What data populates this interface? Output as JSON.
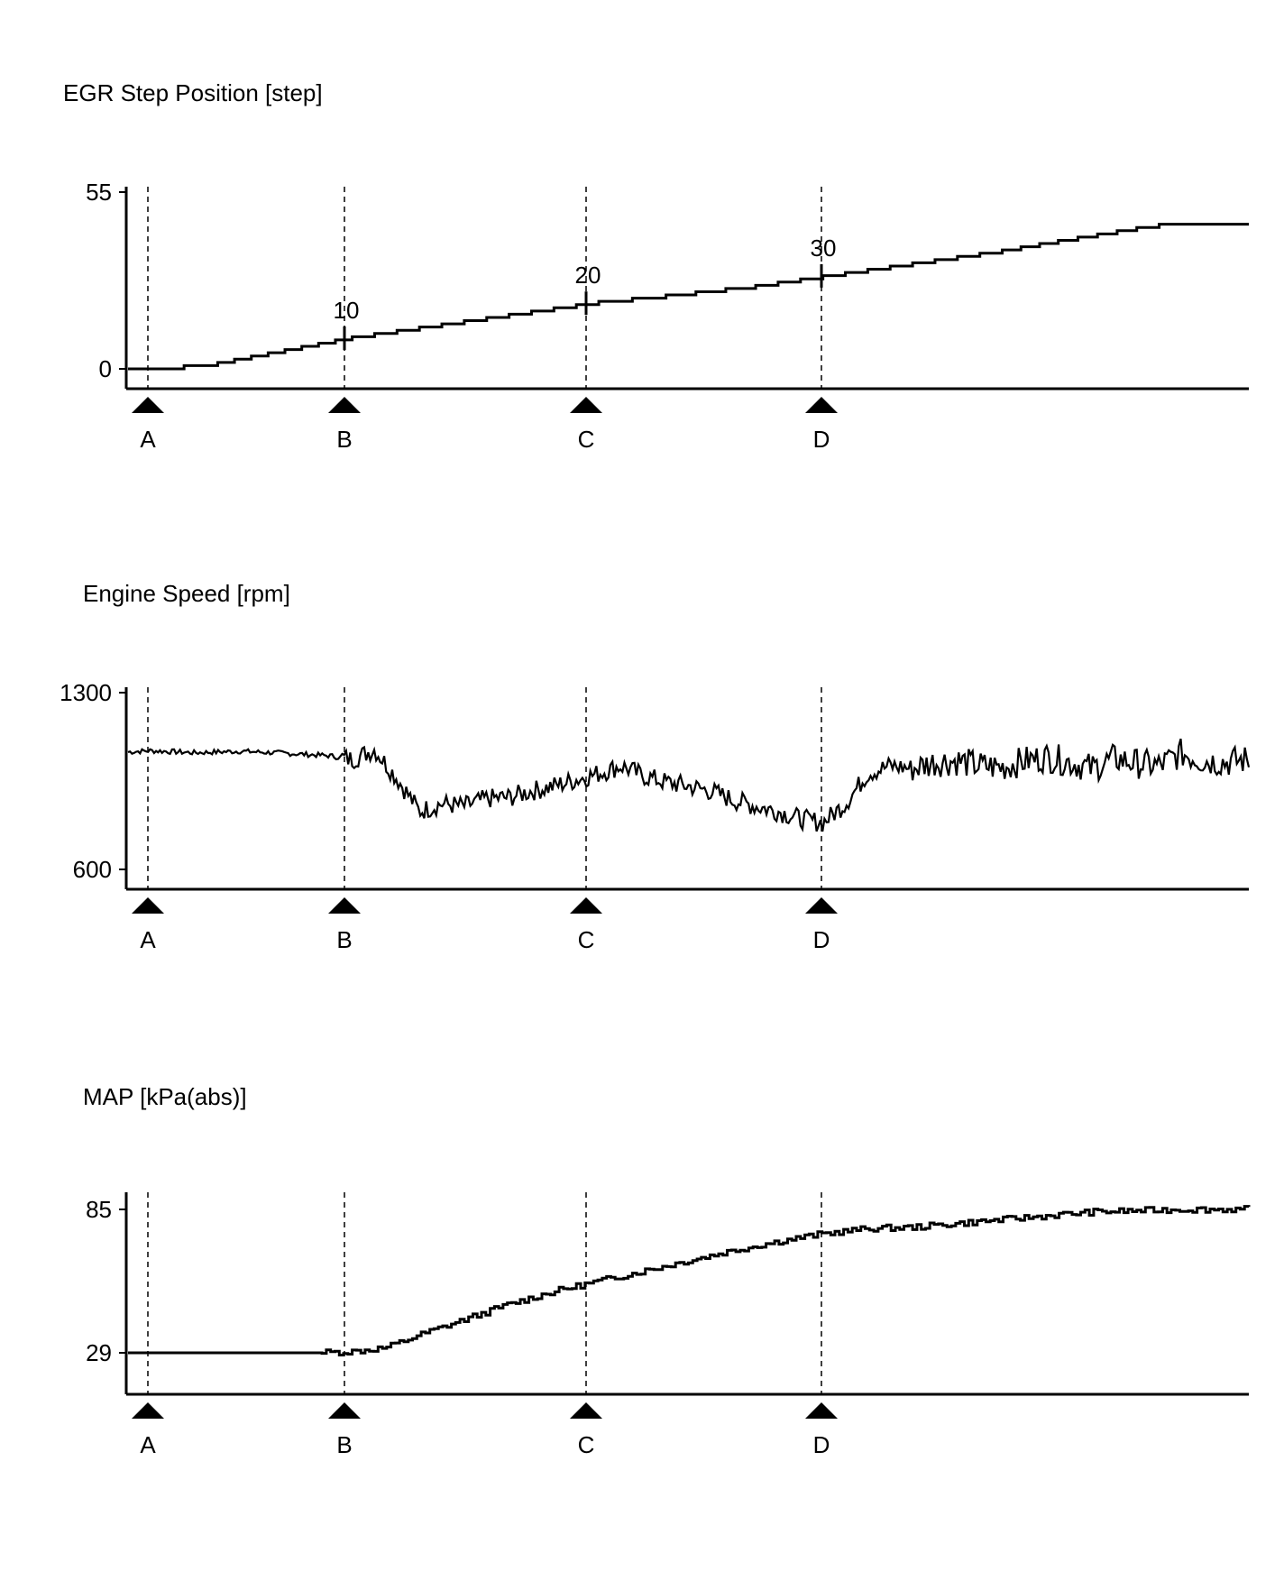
{
  "chart_data": [
    {
      "type": "line",
      "title": "EGR Step Position [step]",
      "ylim": [
        0,
        55
      ],
      "y_tick_labels": [
        "55",
        "0"
      ],
      "grid": false,
      "markers": [
        "A",
        "B",
        "C",
        "D"
      ],
      "annotations": [
        "10",
        "20",
        "30"
      ],
      "series": [
        {
          "x": [
            0,
            0.02,
            0.08,
            0.2,
            0.26,
            0.34,
            0.42,
            0.48,
            0.56,
            0.64,
            0.7,
            0.78,
            0.83,
            0.9,
            0.92,
            1.0
          ],
          "values": [
            0,
            0,
            2,
            10,
            13,
            17,
            21,
            23,
            26,
            30,
            33,
            37,
            40,
            44,
            45,
            45
          ]
        }
      ]
    },
    {
      "type": "line",
      "title": "Engine Speed [rpm]",
      "ylim": [
        600,
        1300
      ],
      "y_tick_labels": [
        "1300",
        "600"
      ],
      "grid": false,
      "markers": [
        "A",
        "B",
        "C",
        "D"
      ],
      "series": [
        {
          "x": [
            0,
            0.02,
            0.06,
            0.1,
            0.14,
            0.18,
            0.2,
            0.22,
            0.24,
            0.26,
            0.28,
            0.3,
            0.32,
            0.34,
            0.36,
            0.38,
            0.4,
            0.42,
            0.44,
            0.46,
            0.48,
            0.5,
            0.52,
            0.54,
            0.56,
            0.58,
            0.6,
            0.62,
            0.64,
            0.66,
            0.68,
            0.7,
            0.72,
            0.74,
            0.76,
            0.78,
            0.8,
            0.82,
            0.84,
            0.86,
            0.88,
            0.9,
            0.92,
            0.94,
            0.96,
            0.98,
            1.0
          ],
          "values": [
            1065,
            1070,
            1062,
            1068,
            1060,
            1050,
            1035,
            1075,
            960,
            830,
            860,
            850,
            880,
            885,
            910,
            930,
            955,
            980,
            1010,
            970,
            945,
            930,
            910,
            875,
            850,
            830,
            800,
            785,
            860,
            980,
            1010,
            1000,
            1025,
            1030,
            1010,
            1005,
            1030,
            1045,
            1025,
            1000,
            1040,
            1020,
            1010,
            1060,
            1030,
            1025,
            1035
          ]
        }
      ]
    },
    {
      "type": "line",
      "title": "MAP [kPa(abs)]",
      "ylim": [
        20,
        94
      ],
      "y_tick_labels": [
        "85",
        "29"
      ],
      "grid": false,
      "markers": [
        "A",
        "B",
        "C",
        "D"
      ],
      "series": [
        {
          "x": [
            0,
            0.1,
            0.17,
            0.2,
            0.23,
            0.26,
            0.3,
            0.34,
            0.38,
            0.42,
            0.46,
            0.5,
            0.54,
            0.58,
            0.62,
            0.66,
            0.7,
            0.74,
            0.78,
            0.82,
            0.86,
            0.9,
            0.94,
            0.98,
            1.0
          ],
          "values": [
            29,
            29,
            29,
            29.5,
            31,
            36,
            42,
            48,
            53,
            57,
            61,
            65,
            69,
            72.5,
            75.5,
            77.5,
            78,
            79.5,
            81,
            82.5,
            84,
            84.5,
            85,
            85,
            85
          ]
        }
      ]
    }
  ]
}
